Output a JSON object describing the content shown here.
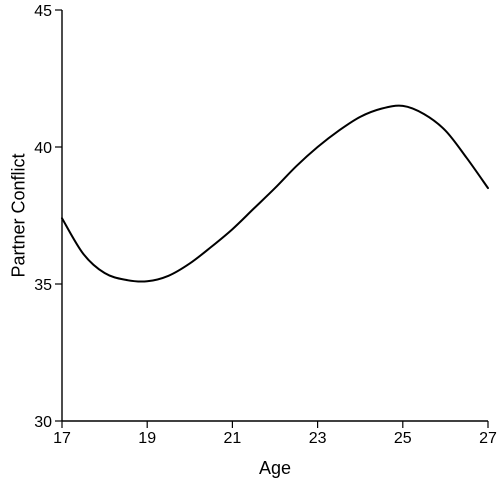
{
  "chart_data": {
    "type": "line",
    "title": "",
    "xlabel": "Age",
    "ylabel": "Partner Conflict",
    "xlim": [
      17,
      27
    ],
    "ylim": [
      30,
      45
    ],
    "xticks": [
      17,
      19,
      21,
      23,
      25,
      27
    ],
    "yticks": [
      30,
      35,
      40,
      45
    ],
    "grid": false,
    "series": [
      {
        "color": "#000000",
        "x": [
          17,
          17.5,
          18,
          18.5,
          19,
          19.5,
          20,
          20.5,
          21,
          21.5,
          22,
          22.5,
          23,
          23.5,
          24,
          24.5,
          25,
          25.5,
          26,
          26.5,
          27
        ],
        "y": [
          37.4,
          36.1,
          35.4,
          35.15,
          35.1,
          35.3,
          35.75,
          36.35,
          37.0,
          37.75,
          38.5,
          39.3,
          40.0,
          40.6,
          41.1,
          41.4,
          41.5,
          41.2,
          40.6,
          39.6,
          38.5
        ]
      }
    ]
  }
}
